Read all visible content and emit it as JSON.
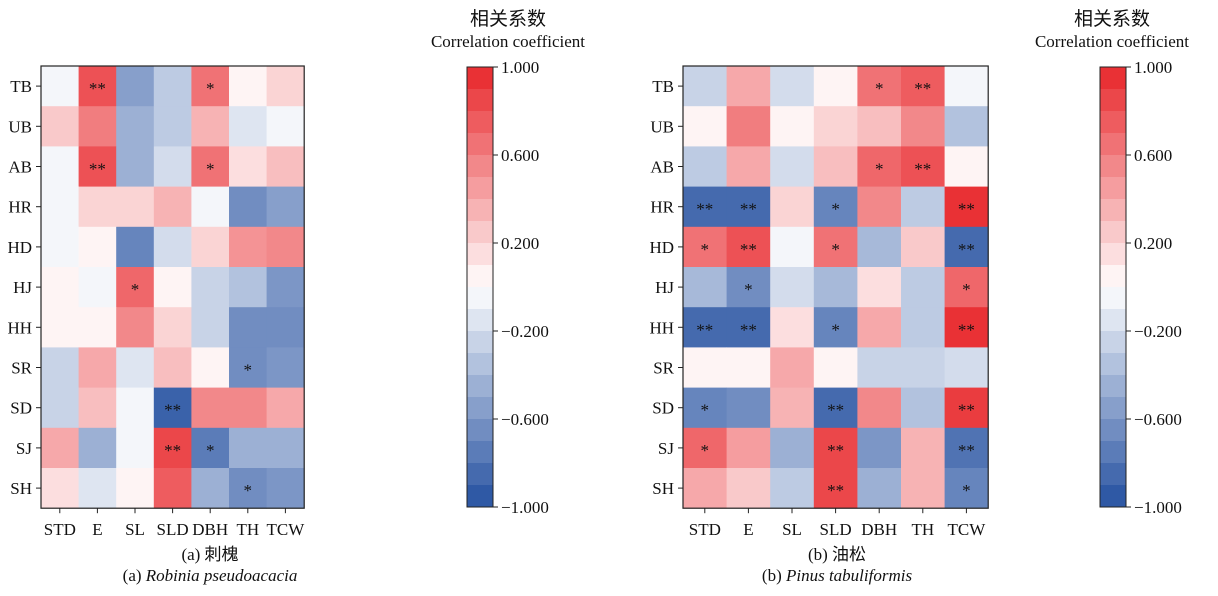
{
  "chart_data": [
    {
      "type": "heatmap",
      "caption_cn": "(a) 刺槐",
      "caption_prefix": "(a) ",
      "caption_species": "Robinia pseudoacacia",
      "columns": [
        "STD",
        "E",
        "SL",
        "SLD",
        "DBH",
        "TH",
        "TCW"
      ],
      "rows": [
        "TB",
        "UB",
        "AB",
        "HR",
        "HD",
        "HJ",
        "HH",
        "SR",
        "SD",
        "SJ",
        "SH"
      ],
      "values": [
        [
          -0.05,
          0.8,
          -0.55,
          -0.3,
          0.65,
          0.05,
          0.2
        ],
        [
          0.25,
          0.6,
          -0.45,
          -0.3,
          0.35,
          -0.15,
          -0.05
        ],
        [
          -0.05,
          0.8,
          -0.45,
          -0.2,
          0.65,
          0.15,
          0.3
        ],
        [
          -0.05,
          0.2,
          0.2,
          0.35,
          -0.05,
          -0.65,
          -0.55
        ],
        [
          -0.05,
          0.05,
          -0.7,
          -0.2,
          0.2,
          0.5,
          0.55
        ],
        [
          0.05,
          -0.05,
          0.7,
          0.05,
          -0.25,
          -0.35,
          -0.6
        ],
        [
          0.05,
          0.05,
          0.55,
          0.2,
          -0.25,
          -0.65,
          -0.65
        ],
        [
          -0.25,
          0.4,
          -0.15,
          0.3,
          0.05,
          -0.65,
          -0.6
        ],
        [
          -0.25,
          0.3,
          -0.05,
          -0.9,
          0.55,
          0.55,
          0.4
        ],
        [
          0.4,
          -0.45,
          -0.05,
          0.85,
          -0.75,
          -0.45,
          -0.45
        ],
        [
          0.15,
          -0.15,
          0.05,
          0.75,
          -0.45,
          -0.65,
          -0.6
        ]
      ],
      "significance": [
        [
          "",
          "**",
          "",
          "",
          "*",
          "",
          ""
        ],
        [
          "",
          "",
          "",
          "",
          "",
          "",
          ""
        ],
        [
          "",
          "**",
          "",
          "",
          "*",
          "",
          ""
        ],
        [
          "",
          "",
          "",
          "",
          "",
          "",
          ""
        ],
        [
          "",
          "",
          "",
          "",
          "",
          "",
          ""
        ],
        [
          "",
          "",
          "*",
          "",
          "",
          "",
          ""
        ],
        [
          "",
          "",
          "",
          "",
          "",
          "",
          ""
        ],
        [
          "",
          "",
          "",
          "",
          "",
          "*",
          ""
        ],
        [
          "",
          "",
          "",
          "**",
          "",
          "",
          ""
        ],
        [
          "",
          "",
          "",
          "**",
          "*",
          "",
          ""
        ],
        [
          "",
          "",
          "",
          "",
          "",
          "*",
          ""
        ]
      ],
      "legend_title_cn": "相关系数",
      "legend_title_en": "Correlation coefficient",
      "legend_ticks": [
        "1.000",
        "0.600",
        "0.200",
        "−0.200",
        "−0.600",
        "−1.000"
      ],
      "legend_tick_values": [
        1.0,
        0.6,
        0.2,
        -0.2,
        -0.6,
        -1.0
      ],
      "color_range": [
        -1.0,
        1.0
      ],
      "colors": {
        "negative": "#2450a0",
        "neutral": "#ffffff",
        "positive": "#e8262a"
      }
    },
    {
      "type": "heatmap",
      "caption_cn": "(b) 油松",
      "caption_prefix": "(b) ",
      "caption_species": "Pinus tabuliformis",
      "columns": [
        "STD",
        "E",
        "SL",
        "SLD",
        "DBH",
        "TH",
        "TCW"
      ],
      "rows": [
        "TB",
        "UB",
        "AB",
        "HR",
        "HD",
        "HJ",
        "HH",
        "SR",
        "SD",
        "SJ",
        "SH"
      ],
      "values": [
        [
          -0.25,
          0.4,
          -0.2,
          0.05,
          0.65,
          0.75,
          -0.05
        ],
        [
          0.05,
          0.6,
          0.05,
          0.2,
          0.3,
          0.55,
          -0.35
        ],
        [
          -0.3,
          0.4,
          -0.2,
          0.3,
          0.7,
          0.8,
          0.05
        ],
        [
          -0.85,
          -0.85,
          0.2,
          -0.7,
          0.55,
          -0.3,
          0.95
        ],
        [
          0.65,
          0.8,
          -0.05,
          0.65,
          -0.4,
          0.25,
          -0.85
        ],
        [
          -0.4,
          -0.65,
          -0.2,
          -0.4,
          0.15,
          -0.3,
          0.7
        ],
        [
          -0.85,
          -0.85,
          0.15,
          -0.7,
          0.4,
          -0.3,
          0.95
        ],
        [
          0.05,
          0.05,
          0.4,
          0.05,
          -0.25,
          -0.25,
          -0.2
        ],
        [
          -0.7,
          -0.65,
          0.35,
          -0.85,
          0.55,
          -0.35,
          0.9
        ],
        [
          0.7,
          0.45,
          -0.45,
          0.85,
          -0.6,
          0.35,
          -0.8
        ],
        [
          0.4,
          0.25,
          -0.3,
          0.85,
          -0.45,
          0.35,
          -0.7
        ]
      ],
      "significance": [
        [
          "",
          "",
          "",
          "",
          "*",
          "**",
          ""
        ],
        [
          "",
          "",
          "",
          "",
          "",
          "",
          ""
        ],
        [
          "",
          "",
          "",
          "",
          "*",
          "**",
          ""
        ],
        [
          "**",
          "**",
          "",
          "*",
          "",
          "",
          "**"
        ],
        [
          "*",
          "**",
          "",
          "*",
          "",
          "",
          "**"
        ],
        [
          "",
          "*",
          "",
          "",
          "",
          "",
          "*"
        ],
        [
          "**",
          "**",
          "",
          "*",
          "",
          "",
          "**"
        ],
        [
          "",
          "",
          "",
          "",
          "",
          "",
          ""
        ],
        [
          "*",
          "",
          "",
          "**",
          "",
          "",
          "**"
        ],
        [
          "*",
          "",
          "",
          "**",
          "",
          "",
          "**"
        ],
        [
          "",
          "",
          "",
          "**",
          "",
          "",
          "*"
        ]
      ],
      "legend_title_cn": "相关系数",
      "legend_title_en": "Correlation coefficient",
      "legend_ticks": [
        "1.000",
        "0.600",
        "0.200",
        "−0.200",
        "−0.600",
        "−1.000"
      ],
      "legend_tick_values": [
        1.0,
        0.6,
        0.2,
        -0.2,
        -0.6,
        -1.0
      ],
      "color_range": [
        -1.0,
        1.0
      ],
      "colors": {
        "negative": "#2450a0",
        "neutral": "#ffffff",
        "positive": "#e8262a"
      }
    }
  ]
}
